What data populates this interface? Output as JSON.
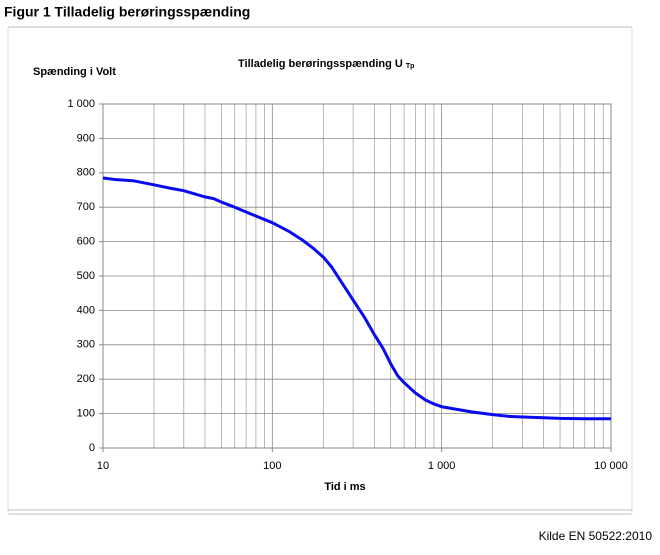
{
  "figure_title": "Figur 1 Tilladelig berøringsspænding",
  "source": "Kilde EN 50522:2010",
  "chart_data": {
    "type": "line",
    "title": "Tilladelig berøringsspænding U",
    "title_subscript": "Tp",
    "y_label": "Spænding i Volt",
    "x_label": "Tid i ms",
    "x_log": true,
    "grid": true,
    "xlim": [
      10,
      10000
    ],
    "ylim": [
      0,
      1000
    ],
    "xticks": [
      10,
      100,
      {
        "value": 1000,
        "label": "1 000"
      },
      {
        "value": 10000,
        "label": "10 000"
      }
    ],
    "x_minor_ticks": [
      20,
      30,
      40,
      50,
      60,
      70,
      80,
      90,
      200,
      300,
      400,
      500,
      600,
      700,
      800,
      900,
      2000,
      3000,
      4000,
      5000,
      6000,
      7000,
      8000,
      9000
    ],
    "yticks": [
      0,
      100,
      200,
      300,
      400,
      500,
      600,
      700,
      800,
      900,
      {
        "value": 1000,
        "label": "1 000"
      }
    ],
    "x": [
      10,
      12,
      15,
      20,
      25,
      30,
      40,
      45,
      50,
      60,
      75,
      100,
      125,
      150,
      175,
      200,
      225,
      250,
      300,
      350,
      400,
      450,
      500,
      550,
      600,
      700,
      800,
      900,
      1000,
      1500,
      2000,
      2500,
      3000,
      4000,
      5000,
      7000,
      10000
    ],
    "series": [
      {
        "name": "U Tp",
        "color": "#0a0aee",
        "values": [
          785,
          780,
          777,
          765,
          755,
          748,
          730,
          725,
          715,
          700,
          680,
          655,
          630,
          605,
          580,
          555,
          525,
          490,
          430,
          380,
          330,
          290,
          245,
          210,
          190,
          160,
          140,
          128,
          120,
          105,
          97,
          92,
          90,
          88,
          86,
          85,
          85
        ]
      }
    ]
  }
}
